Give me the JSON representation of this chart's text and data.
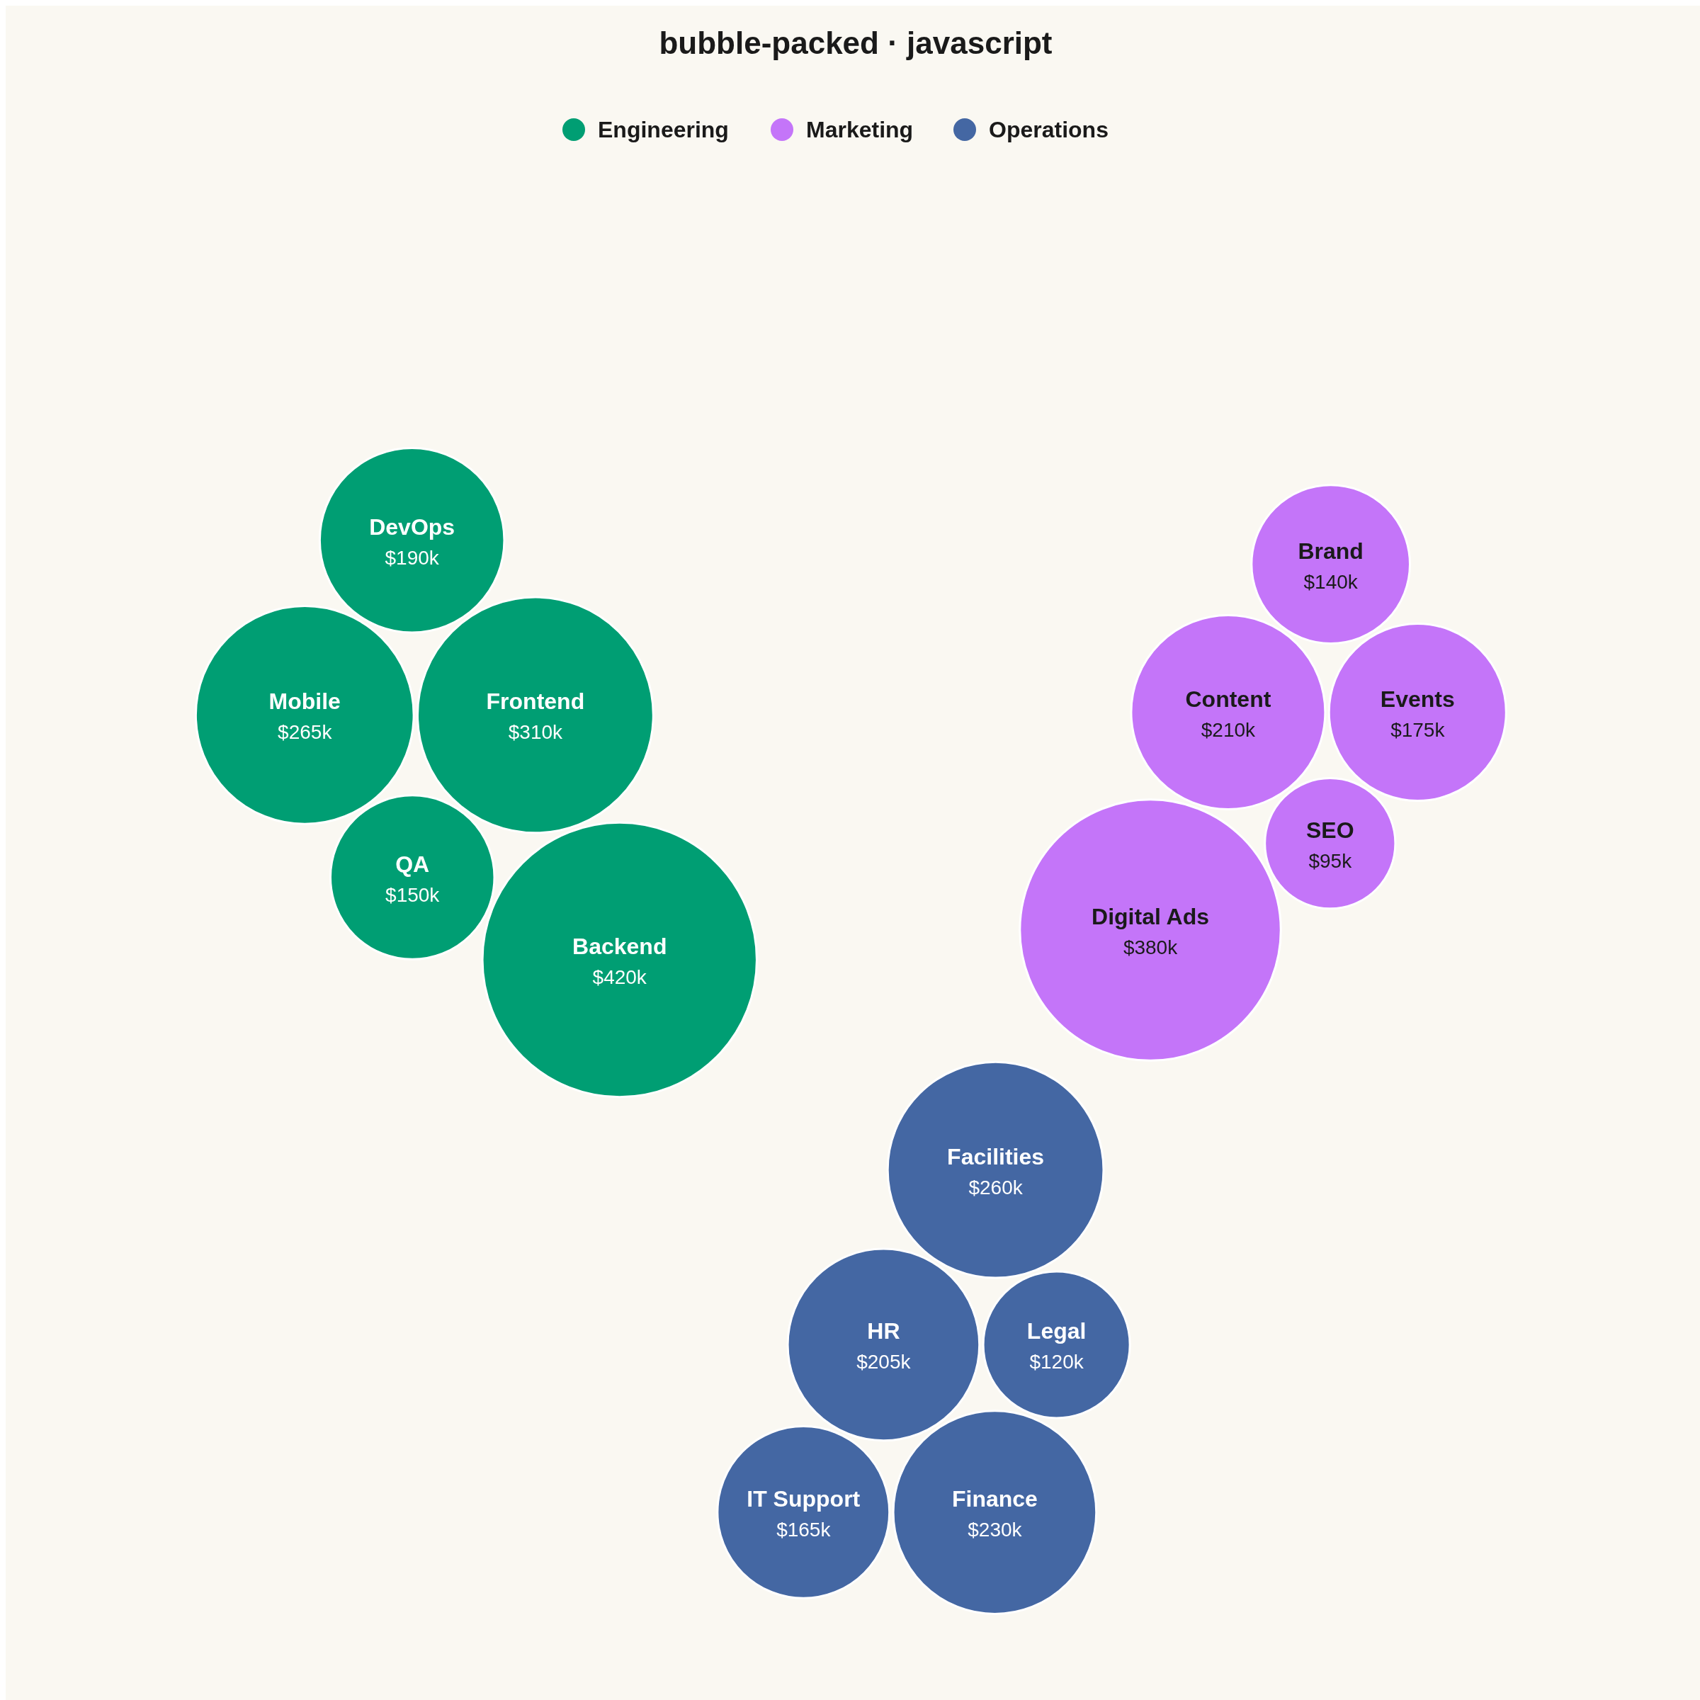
{
  "chart_data": {
    "type": "other",
    "title": "bubble-packed · javascript",
    "legend": "top",
    "categories": [
      "Mobile",
      "Frontend",
      "QA",
      "DevOps",
      "Backend",
      "Content",
      "Events",
      "SEO",
      "Brand",
      "Digital Ads",
      "HR",
      "Legal",
      "Finance",
      "Facilities",
      "IT Support"
    ],
    "series": [
      {
        "name": "Engineering",
        "color": "#009e73",
        "values": [
          265,
          310,
          150,
          190,
          420,
          null,
          null,
          null,
          null,
          null,
          null,
          null,
          null,
          null,
          null
        ],
        "value_labels": [
          "$265k",
          "$310k",
          "$150k",
          "$190k",
          "$420k",
          null,
          null,
          null,
          null,
          null,
          null,
          null,
          null,
          null,
          null
        ]
      },
      {
        "name": "Marketing",
        "color": "#c475f9",
        "values": [
          null,
          null,
          null,
          null,
          null,
          210,
          175,
          95,
          140,
          380,
          null,
          null,
          null,
          null,
          null
        ],
        "value_labels": [
          null,
          null,
          null,
          null,
          null,
          "$210k",
          "$175k",
          "$95k",
          "$140k",
          "$380k",
          null,
          null,
          null,
          null,
          null
        ]
      },
      {
        "name": "Operations",
        "color": "#4467a3",
        "values": [
          null,
          null,
          null,
          null,
          null,
          null,
          null,
          null,
          null,
          null,
          205,
          120,
          230,
          260,
          165
        ],
        "value_labels": [
          null,
          null,
          null,
          null,
          null,
          null,
          null,
          null,
          null,
          null,
          "$205k",
          "$120k",
          "$230k",
          "$260k",
          "$165k"
        ]
      }
    ]
  }
}
